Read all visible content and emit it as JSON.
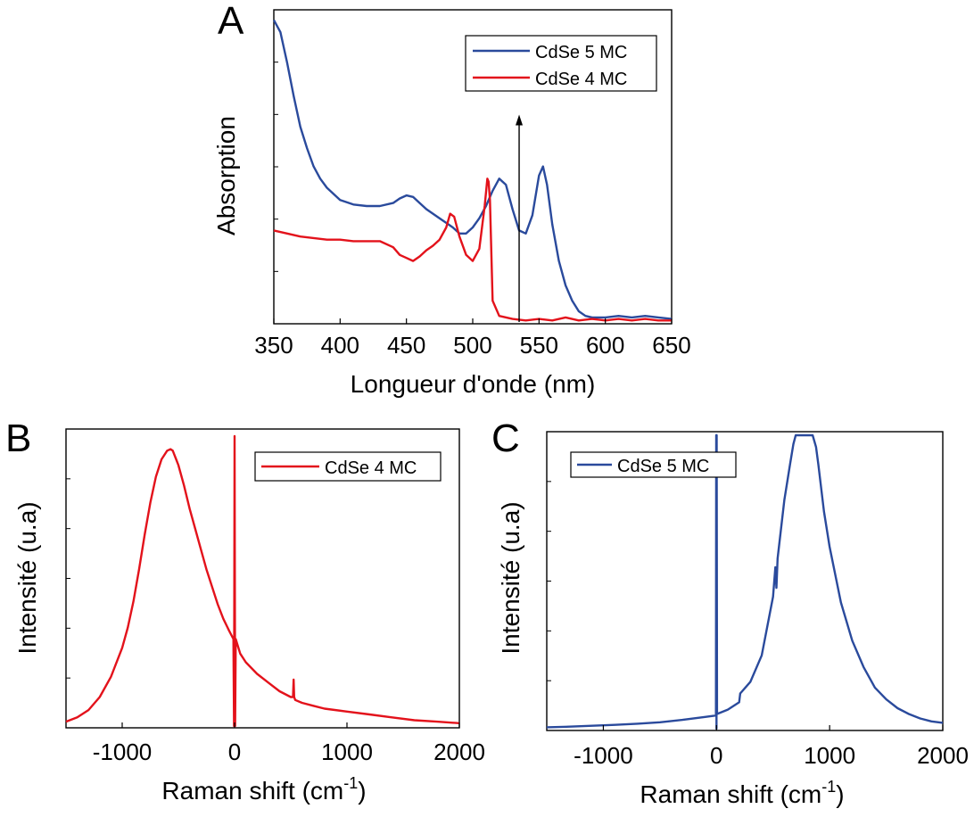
{
  "colors": {
    "blue": "#2a4a9c",
    "red": "#e3121b"
  },
  "chart_data": [
    {
      "panel": "A",
      "type": "line",
      "xlabel": "Longueur d'onde (nm)",
      "ylabel": "Absorption",
      "xlim": [
        350,
        650
      ],
      "ylim": [
        0,
        1
      ],
      "xticks": [
        350,
        400,
        450,
        500,
        550,
        600,
        650
      ],
      "yticks_labeled": false,
      "legend_position": "top-right",
      "annotation": "vertical arrow at 535 nm",
      "arrow": {
        "x": 535,
        "y_from": 0.0,
        "y_to": 0.68
      },
      "series": [
        {
          "name": "CdSe 5 MC",
          "color": "#2a4a9c",
          "x": [
            350,
            355,
            360,
            365,
            370,
            375,
            380,
            385,
            390,
            400,
            410,
            420,
            430,
            440,
            445,
            450,
            455,
            460,
            465,
            470,
            475,
            480,
            485,
            490,
            495,
            500,
            505,
            510,
            515,
            520,
            525,
            530,
            535,
            540,
            545,
            550,
            553,
            556,
            560,
            565,
            570,
            575,
            580,
            585,
            590,
            600,
            610,
            620,
            630,
            640,
            650
          ],
          "y": [
            0.99,
            0.95,
            0.85,
            0.74,
            0.64,
            0.57,
            0.51,
            0.47,
            0.44,
            0.4,
            0.385,
            0.38,
            0.38,
            0.39,
            0.405,
            0.415,
            0.41,
            0.39,
            0.37,
            0.355,
            0.34,
            0.325,
            0.31,
            0.29,
            0.29,
            0.31,
            0.34,
            0.38,
            0.43,
            0.47,
            0.45,
            0.37,
            0.3,
            0.29,
            0.35,
            0.48,
            0.51,
            0.45,
            0.32,
            0.2,
            0.12,
            0.07,
            0.035,
            0.02,
            0.015,
            0.015,
            0.02,
            0.015,
            0.02,
            0.015,
            0.01
          ]
        },
        {
          "name": "CdSe 4 MC",
          "color": "#e3121b",
          "x": [
            350,
            360,
            370,
            380,
            390,
            400,
            410,
            420,
            430,
            440,
            445,
            450,
            455,
            460,
            465,
            470,
            475,
            480,
            483,
            486,
            490,
            495,
            500,
            505,
            509,
            511,
            512,
            513,
            515,
            520,
            530,
            540,
            550,
            560,
            570,
            580,
            590,
            600,
            610,
            620,
            630,
            640,
            650
          ],
          "y": [
            0.3,
            0.29,
            0.28,
            0.275,
            0.27,
            0.27,
            0.265,
            0.265,
            0.265,
            0.245,
            0.22,
            0.21,
            0.2,
            0.215,
            0.235,
            0.25,
            0.27,
            0.31,
            0.355,
            0.345,
            0.28,
            0.22,
            0.2,
            0.24,
            0.38,
            0.47,
            0.46,
            0.4,
            0.07,
            0.02,
            0.01,
            0.005,
            0.01,
            0.005,
            0.015,
            0.005,
            0.01,
            0.005,
            0.01,
            0.005,
            0.01,
            0.005,
            0.005
          ]
        }
      ]
    },
    {
      "panel": "B",
      "type": "line",
      "xlabel": "Raman shift (cm",
      "xlabel_sup": "-1",
      "xlabel_end": ")",
      "ylabel": "Intensité (u.a)",
      "xlim": [
        -1500,
        2000
      ],
      "ylim": [
        0,
        1
      ],
      "xticks": [
        -1000,
        0,
        1000,
        2000
      ],
      "yticks_labeled": false,
      "legend_position": "top-right",
      "series": [
        {
          "name": "CdSe 4 MC",
          "color": "#e3121b",
          "x": [
            -1500,
            -1400,
            -1300,
            -1200,
            -1100,
            -1000,
            -950,
            -900,
            -850,
            -800,
            -750,
            -700,
            -650,
            -600,
            -570,
            -550,
            -520,
            -500,
            -450,
            -400,
            -350,
            -300,
            -250,
            -200,
            -150,
            -100,
            -50,
            -10,
            -5,
            0,
            5,
            10,
            50,
            100,
            200,
            300,
            400,
            500,
            520,
            525,
            530,
            540,
            600,
            700,
            800,
            1000,
            1200,
            1400,
            1600,
            1800,
            2000
          ],
          "y": [
            0.015,
            0.03,
            0.055,
            0.1,
            0.17,
            0.27,
            0.34,
            0.43,
            0.54,
            0.66,
            0.77,
            0.86,
            0.92,
            0.95,
            0.955,
            0.95,
            0.92,
            0.9,
            0.83,
            0.75,
            0.68,
            0.61,
            0.54,
            0.48,
            0.42,
            0.37,
            0.33,
            0.3,
            0.0,
            1.0,
            0.0,
            0.3,
            0.25,
            0.22,
            0.18,
            0.15,
            0.12,
            0.1,
            0.1,
            0.16,
            0.1,
            0.09,
            0.08,
            0.07,
            0.06,
            0.05,
            0.04,
            0.03,
            0.02,
            0.015,
            0.01
          ]
        }
      ]
    },
    {
      "panel": "C",
      "type": "line",
      "xlabel": "Raman shift (cm",
      "xlabel_sup": "-1",
      "xlabel_end": ")",
      "ylabel": "Intensité (u.a)",
      "xlim": [
        -1500,
        2000
      ],
      "ylim": [
        0,
        1
      ],
      "xticks": [
        -1000,
        0,
        1000,
        2000
      ],
      "yticks_labeled": false,
      "legend_position": "top-left",
      "series": [
        {
          "name": "CdSe 5 MC",
          "color": "#2a4a9c",
          "x": [
            -1500,
            -1300,
            -1100,
            -900,
            -700,
            -500,
            -300,
            -100,
            -5,
            -2,
            0,
            2,
            5,
            100,
            200,
            210,
            300,
            400,
            500,
            520,
            530,
            540,
            600,
            650,
            680,
            700,
            750,
            800,
            830,
            850,
            880,
            900,
            950,
            1000,
            1100,
            1200,
            1300,
            1400,
            1500,
            1600,
            1700,
            1800,
            1900,
            2000
          ],
          "y": [
            0.005,
            0.007,
            0.01,
            0.013,
            0.017,
            0.022,
            0.03,
            0.04,
            0.045,
            1.0,
            0.0,
            1.0,
            0.05,
            0.065,
            0.09,
            0.12,
            0.16,
            0.25,
            0.45,
            0.55,
            0.48,
            0.58,
            0.78,
            0.9,
            0.97,
            1.0,
            1.0,
            1.0,
            1.0,
            1.0,
            0.96,
            0.9,
            0.74,
            0.62,
            0.43,
            0.3,
            0.21,
            0.14,
            0.1,
            0.07,
            0.05,
            0.035,
            0.025,
            0.02
          ]
        }
      ]
    }
  ]
}
